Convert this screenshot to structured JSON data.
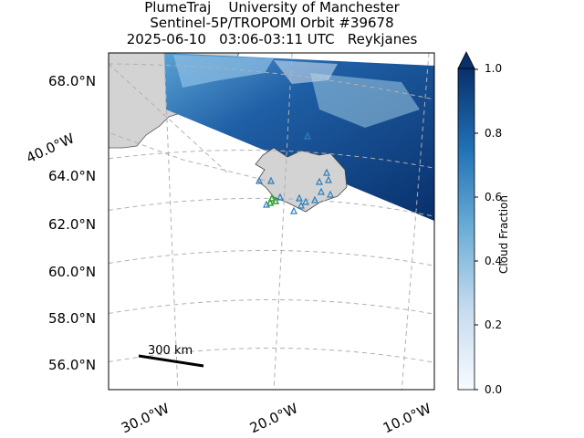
{
  "title": {
    "line1": "PlumeTraj    University of Manchester",
    "line2": "Sentinel-5P/TROPOMI Orbit #39678",
    "line3": "2025-06-10   03:06-03:11 UTC   Reykjanes"
  },
  "map": {
    "lat_labels": [
      "68.0°N",
      "64.0°N",
      "62.0°N",
      "60.0°N",
      "58.0°N",
      "56.0°N"
    ],
    "lon_labels": [
      "40.0°W",
      "30.0°W",
      "20.0°W",
      "10.0°W"
    ],
    "gridlines": true,
    "land_color": "#d3d3d3",
    "marker_colors": {
      "observations": "#2a7fc0",
      "source": "#2ca02c"
    }
  },
  "colorbar": {
    "label": "Cloud Fraction",
    "ticks": [
      "0.0",
      "0.2",
      "0.4",
      "0.6",
      "0.8",
      "1.0"
    ],
    "range": [
      0.0,
      1.0
    ],
    "cmap_low": "#f7fbff",
    "cmap_high": "#08306b"
  },
  "scale_bar": {
    "label": "300 km"
  }
}
